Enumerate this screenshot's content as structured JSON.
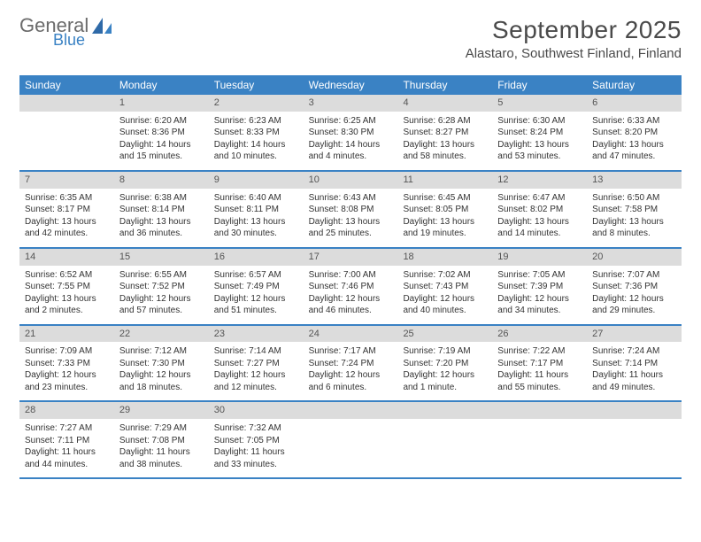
{
  "colors": {
    "header_bar": "#3a82c4",
    "day_band": "#dcdcdc",
    "week_divider": "#3a82c4",
    "text": "#333333",
    "logo_gray": "#6b6b6b",
    "logo_blue": "#3a82c4",
    "background": "#ffffff"
  },
  "typography": {
    "title_fontsize": 28,
    "location_fontsize": 15,
    "dow_fontsize": 12,
    "daynum_fontsize": 11,
    "body_fontsize": 10
  },
  "logo": {
    "general": "General",
    "blue": "Blue"
  },
  "title": "September 2025",
  "location": "Alastaro, Southwest Finland, Finland",
  "days_of_week": [
    "Sunday",
    "Monday",
    "Tuesday",
    "Wednesday",
    "Thursday",
    "Friday",
    "Saturday"
  ],
  "weeks": [
    [
      null,
      {
        "n": "1",
        "sr": "Sunrise: 6:20 AM",
        "ss": "Sunset: 8:36 PM",
        "dl": "Daylight: 14 hours and 15 minutes."
      },
      {
        "n": "2",
        "sr": "Sunrise: 6:23 AM",
        "ss": "Sunset: 8:33 PM",
        "dl": "Daylight: 14 hours and 10 minutes."
      },
      {
        "n": "3",
        "sr": "Sunrise: 6:25 AM",
        "ss": "Sunset: 8:30 PM",
        "dl": "Daylight: 14 hours and 4 minutes."
      },
      {
        "n": "4",
        "sr": "Sunrise: 6:28 AM",
        "ss": "Sunset: 8:27 PM",
        "dl": "Daylight: 13 hours and 58 minutes."
      },
      {
        "n": "5",
        "sr": "Sunrise: 6:30 AM",
        "ss": "Sunset: 8:24 PM",
        "dl": "Daylight: 13 hours and 53 minutes."
      },
      {
        "n": "6",
        "sr": "Sunrise: 6:33 AM",
        "ss": "Sunset: 8:20 PM",
        "dl": "Daylight: 13 hours and 47 minutes."
      }
    ],
    [
      {
        "n": "7",
        "sr": "Sunrise: 6:35 AM",
        "ss": "Sunset: 8:17 PM",
        "dl": "Daylight: 13 hours and 42 minutes."
      },
      {
        "n": "8",
        "sr": "Sunrise: 6:38 AM",
        "ss": "Sunset: 8:14 PM",
        "dl": "Daylight: 13 hours and 36 minutes."
      },
      {
        "n": "9",
        "sr": "Sunrise: 6:40 AM",
        "ss": "Sunset: 8:11 PM",
        "dl": "Daylight: 13 hours and 30 minutes."
      },
      {
        "n": "10",
        "sr": "Sunrise: 6:43 AM",
        "ss": "Sunset: 8:08 PM",
        "dl": "Daylight: 13 hours and 25 minutes."
      },
      {
        "n": "11",
        "sr": "Sunrise: 6:45 AM",
        "ss": "Sunset: 8:05 PM",
        "dl": "Daylight: 13 hours and 19 minutes."
      },
      {
        "n": "12",
        "sr": "Sunrise: 6:47 AM",
        "ss": "Sunset: 8:02 PM",
        "dl": "Daylight: 13 hours and 14 minutes."
      },
      {
        "n": "13",
        "sr": "Sunrise: 6:50 AM",
        "ss": "Sunset: 7:58 PM",
        "dl": "Daylight: 13 hours and 8 minutes."
      }
    ],
    [
      {
        "n": "14",
        "sr": "Sunrise: 6:52 AM",
        "ss": "Sunset: 7:55 PM",
        "dl": "Daylight: 13 hours and 2 minutes."
      },
      {
        "n": "15",
        "sr": "Sunrise: 6:55 AM",
        "ss": "Sunset: 7:52 PM",
        "dl": "Daylight: 12 hours and 57 minutes."
      },
      {
        "n": "16",
        "sr": "Sunrise: 6:57 AM",
        "ss": "Sunset: 7:49 PM",
        "dl": "Daylight: 12 hours and 51 minutes."
      },
      {
        "n": "17",
        "sr": "Sunrise: 7:00 AM",
        "ss": "Sunset: 7:46 PM",
        "dl": "Daylight: 12 hours and 46 minutes."
      },
      {
        "n": "18",
        "sr": "Sunrise: 7:02 AM",
        "ss": "Sunset: 7:43 PM",
        "dl": "Daylight: 12 hours and 40 minutes."
      },
      {
        "n": "19",
        "sr": "Sunrise: 7:05 AM",
        "ss": "Sunset: 7:39 PM",
        "dl": "Daylight: 12 hours and 34 minutes."
      },
      {
        "n": "20",
        "sr": "Sunrise: 7:07 AM",
        "ss": "Sunset: 7:36 PM",
        "dl": "Daylight: 12 hours and 29 minutes."
      }
    ],
    [
      {
        "n": "21",
        "sr": "Sunrise: 7:09 AM",
        "ss": "Sunset: 7:33 PM",
        "dl": "Daylight: 12 hours and 23 minutes."
      },
      {
        "n": "22",
        "sr": "Sunrise: 7:12 AM",
        "ss": "Sunset: 7:30 PM",
        "dl": "Daylight: 12 hours and 18 minutes."
      },
      {
        "n": "23",
        "sr": "Sunrise: 7:14 AM",
        "ss": "Sunset: 7:27 PM",
        "dl": "Daylight: 12 hours and 12 minutes."
      },
      {
        "n": "24",
        "sr": "Sunrise: 7:17 AM",
        "ss": "Sunset: 7:24 PM",
        "dl": "Daylight: 12 hours and 6 minutes."
      },
      {
        "n": "25",
        "sr": "Sunrise: 7:19 AM",
        "ss": "Sunset: 7:20 PM",
        "dl": "Daylight: 12 hours and 1 minute."
      },
      {
        "n": "26",
        "sr": "Sunrise: 7:22 AM",
        "ss": "Sunset: 7:17 PM",
        "dl": "Daylight: 11 hours and 55 minutes."
      },
      {
        "n": "27",
        "sr": "Sunrise: 7:24 AM",
        "ss": "Sunset: 7:14 PM",
        "dl": "Daylight: 11 hours and 49 minutes."
      }
    ],
    [
      {
        "n": "28",
        "sr": "Sunrise: 7:27 AM",
        "ss": "Sunset: 7:11 PM",
        "dl": "Daylight: 11 hours and 44 minutes."
      },
      {
        "n": "29",
        "sr": "Sunrise: 7:29 AM",
        "ss": "Sunset: 7:08 PM",
        "dl": "Daylight: 11 hours and 38 minutes."
      },
      {
        "n": "30",
        "sr": "Sunrise: 7:32 AM",
        "ss": "Sunset: 7:05 PM",
        "dl": "Daylight: 11 hours and 33 minutes."
      },
      null,
      null,
      null,
      null
    ]
  ]
}
